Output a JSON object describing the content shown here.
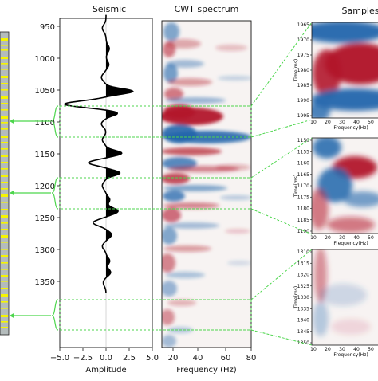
{
  "panels": {
    "seismic_title": "Seismic",
    "cwt_title": "CWT spectrum",
    "samples_title": "Samples"
  },
  "seismic_axis": {
    "y_ticks": [
      "950",
      "1000",
      "1050",
      "1100",
      "1150",
      "1200",
      "1250",
      "1300",
      "1350"
    ],
    "x_ticks": [
      "−5.0",
      "−2.5",
      "0.0",
      "2.5",
      "5.0"
    ],
    "xlabel": "Amplitude"
  },
  "cwt_axis": {
    "x_ticks": [
      "20",
      "40",
      "60",
      "80"
    ],
    "xlabel": "Frequency (Hz)"
  },
  "samples": [
    {
      "y_ticks": [
        "1965",
        "1970",
        "1975",
        "1980",
        "1985",
        "1990",
        "1995"
      ],
      "x_ticks": [
        "10",
        "20",
        "30",
        "40",
        "50"
      ],
      "ylabel": "Time(ms)",
      "xlabel": "Frequency(Hz)"
    },
    {
      "y_ticks": [
        "1150",
        "1155",
        "1160",
        "1165",
        "1170",
        "1175",
        "1180",
        "1185",
        "1190"
      ],
      "x_ticks": [
        "10",
        "20",
        "30",
        "40",
        "50"
      ],
      "ylabel": "Time(ms)",
      "xlabel": "Frequency(Hz)"
    },
    {
      "y_ticks": [
        "1310",
        "1315",
        "1320",
        "1325",
        "1330",
        "1335",
        "1340",
        "1345",
        "1350"
      ],
      "x_ticks": [
        "10",
        "20",
        "30",
        "40",
        "50"
      ],
      "ylabel": "Time(ms)",
      "xlabel": "Frequency(Hz)"
    }
  ],
  "colors": {
    "red": "#b2182b",
    "blue": "#2166ac",
    "green": "#4cd64c",
    "yellow": "#f5f500",
    "gray": "#b4bcbc"
  }
}
